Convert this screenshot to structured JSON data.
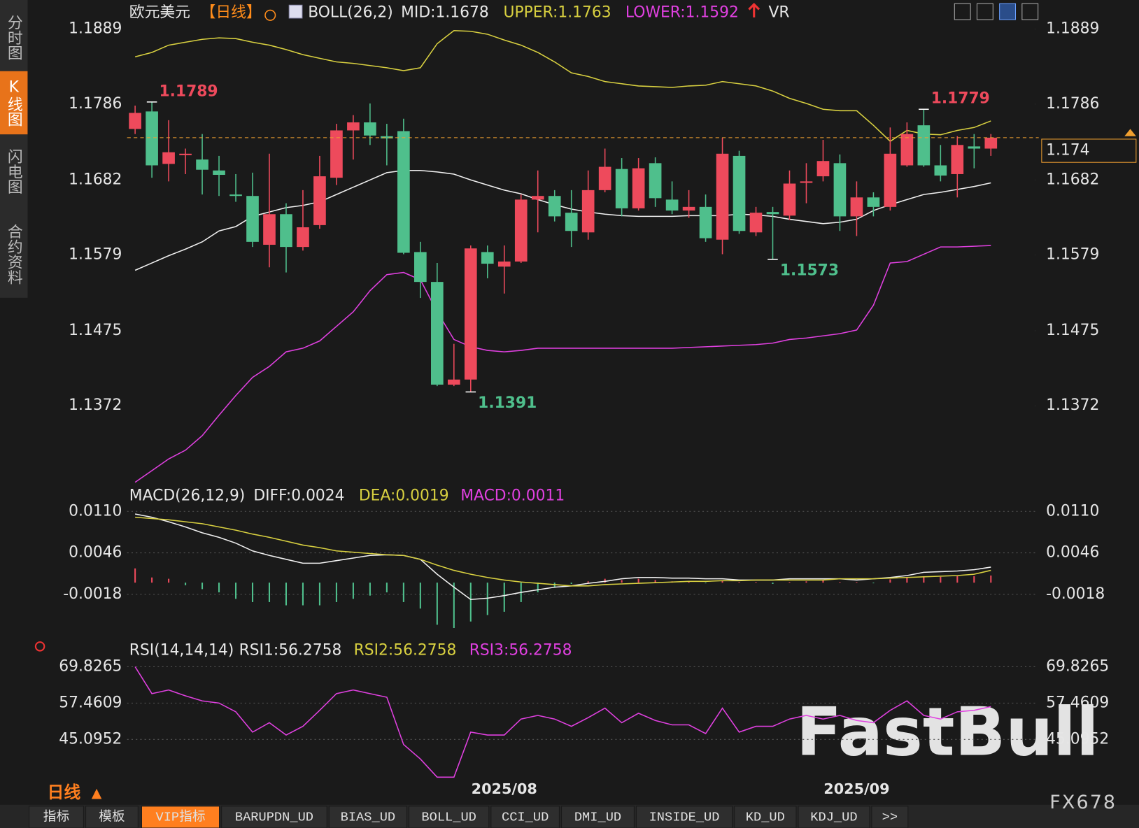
{
  "ui": {
    "side_tabs": [
      "分时图",
      "K线图",
      "闪电图",
      "合约资料"
    ],
    "side_active": 1,
    "bottom_tabs": [
      "指标",
      "模板",
      "VIP指标",
      "BARUPDN_UD",
      "BIAS_UD",
      "BOLL_UD",
      "CCI_UD",
      "DMI_UD",
      "INSIDE_UD",
      "KD_UD",
      "KDJ_UD",
      ">>"
    ],
    "bottom_active": 2,
    "period": "日线",
    "brand": "FX678",
    "watermark": "FastBull"
  },
  "chart_data": [
    {
      "type": "candlestick",
      "legend": [
        "欧元美元",
        "【日线】",
        "BOLL(26,2)",
        "MID:1.1678",
        "UPPER:1.1763",
        "LOWER:1.1592",
        "VR"
      ],
      "legend_colors": [
        "#e8e8e8",
        "#ff8c1a",
        "#e8e8e8",
        "#e8e8e8",
        "#d8d040",
        "#e040e0",
        "#e8e8e8"
      ],
      "categories": [
        null,
        null,
        null,
        null,
        null,
        null,
        null,
        null,
        null,
        null,
        null,
        null,
        null,
        null,
        null,
        null,
        null,
        null,
        null,
        null,
        null,
        null,
        "2025/08",
        null,
        null,
        null,
        null,
        null,
        null,
        null,
        null,
        null,
        null,
        null,
        null,
        null,
        null,
        null,
        null,
        null,
        null,
        null,
        null,
        "2025/09",
        null,
        null,
        null,
        null,
        null,
        null,
        null,
        null
      ],
      "up_color": "#ee4a5c",
      "down_color": "#4fbf8c",
      "last_price_color": "#f0a030",
      "candles": [
        [
          1.1752,
          1.1784,
          1.1745,
          1.1774
        ],
        [
          1.1776,
          1.1789,
          1.1685,
          1.1702
        ],
        [
          1.1704,
          1.1764,
          1.168,
          1.172
        ],
        [
          1.1716,
          1.1725,
          1.169,
          1.1718
        ],
        [
          1.171,
          1.1745,
          1.1662,
          1.1696
        ],
        [
          1.1695,
          1.1715,
          1.166,
          1.1689
        ],
        [
          1.1662,
          1.169,
          1.1652,
          1.166
        ],
        [
          1.166,
          1.1692,
          1.159,
          1.1597
        ],
        [
          1.1593,
          1.1718,
          1.1562,
          1.1635
        ],
        [
          1.1635,
          1.165,
          1.1555,
          1.159
        ],
        [
          1.159,
          1.1668,
          1.1585,
          1.1617
        ],
        [
          1.162,
          1.1715,
          1.1615,
          1.1687
        ],
        [
          1.1685,
          1.1759,
          1.1675,
          1.175
        ],
        [
          1.175,
          1.1771,
          1.171,
          1.1761
        ],
        [
          1.1761,
          1.1787,
          1.173,
          1.1743
        ],
        [
          1.1742,
          1.1759,
          1.1702,
          1.1739
        ],
        [
          1.1749,
          1.1766,
          1.158,
          1.1582
        ],
        [
          1.1583,
          1.1597,
          1.152,
          1.1542
        ],
        [
          1.1542,
          1.1568,
          1.1399,
          1.1401
        ],
        [
          1.1401,
          1.1457,
          1.1399,
          1.1408
        ],
        [
          1.1408,
          1.1592,
          1.1391,
          1.1588
        ],
        [
          1.1583,
          1.1592,
          1.1547,
          1.1567
        ],
        [
          1.1563,
          1.1592,
          1.1526,
          1.157
        ],
        [
          1.157,
          1.1662,
          1.1568,
          1.1655
        ],
        [
          1.1655,
          1.1695,
          1.161,
          1.166
        ],
        [
          1.166,
          1.1668,
          1.1625,
          1.1632
        ],
        [
          1.1637,
          1.1668,
          1.159,
          1.1612
        ],
        [
          1.161,
          1.1695,
          1.16,
          1.1668
        ],
        [
          1.1668,
          1.1725,
          1.1665,
          1.17
        ],
        [
          1.1697,
          1.1712,
          1.1632,
          1.1643
        ],
        [
          1.1643,
          1.1712,
          1.164,
          1.1698
        ],
        [
          1.1705,
          1.1713,
          1.1645,
          1.1657
        ],
        [
          1.1655,
          1.168,
          1.1635,
          1.164
        ],
        [
          1.164,
          1.1668,
          1.163,
          1.1645
        ],
        [
          1.1645,
          1.1662,
          1.1597,
          1.1602
        ],
        [
          1.16,
          1.174,
          1.158,
          1.1718
        ],
        [
          1.1715,
          1.1722,
          1.1608,
          1.1612
        ],
        [
          1.161,
          1.1645,
          1.1605,
          1.1637
        ],
        [
          1.1638,
          1.1645,
          1.1573,
          1.1635
        ],
        [
          1.1633,
          1.1695,
          1.1627,
          1.1677
        ],
        [
          1.1678,
          1.1705,
          1.165,
          1.168
        ],
        [
          1.1687,
          1.1737,
          1.168,
          1.1708
        ],
        [
          1.1705,
          1.1717,
          1.1612,
          1.1632
        ],
        [
          1.1632,
          1.168,
          1.1605,
          1.1658
        ],
        [
          1.1658,
          1.1665,
          1.1632,
          1.1645
        ],
        [
          1.1645,
          1.1754,
          1.164,
          1.1718
        ],
        [
          1.1702,
          1.1761,
          1.17,
          1.1745
        ],
        [
          1.1757,
          1.1779,
          1.17,
          1.1702
        ],
        [
          1.1702,
          1.173,
          1.168,
          1.1688
        ],
        [
          1.169,
          1.1742,
          1.1658,
          1.173
        ],
        [
          1.1728,
          1.1745,
          1.1698,
          1.1725
        ],
        [
          1.1725,
          1.1745,
          1.1715,
          1.174
        ]
      ],
      "lines": [
        {
          "color": "#f0f0f0",
          "values": [
            1.1558,
            1.1568,
            1.1578,
            1.1587,
            1.1597,
            1.1612,
            1.1618,
            1.1632,
            1.1638,
            1.1644,
            1.1647,
            1.1652,
            1.1662,
            1.1672,
            1.1682,
            1.1692,
            1.1695,
            1.1695,
            1.1693,
            1.169,
            1.1682,
            1.1675,
            1.1668,
            1.1663,
            1.1655,
            1.1648,
            1.1642,
            1.1638,
            1.1635,
            1.1633,
            1.1632,
            1.1632,
            1.1632,
            1.1633,
            1.1633,
            1.1633,
            1.1635,
            1.1634,
            1.1632,
            1.1628,
            1.1625,
            1.1622,
            1.1624,
            1.1628,
            1.164,
            1.1648,
            1.1655,
            1.1662,
            1.1665,
            1.1669,
            1.1673,
            1.1678
          ]
        },
        {
          "color": "#d8d040",
          "values": [
            1.1851,
            1.1857,
            1.1867,
            1.1871,
            1.1875,
            1.1877,
            1.1876,
            1.1871,
            1.1867,
            1.1861,
            1.1854,
            1.1849,
            1.1844,
            1.1842,
            1.1839,
            1.1836,
            1.1832,
            1.1836,
            1.1869,
            1.1887,
            1.1886,
            1.1882,
            1.1874,
            1.1867,
            1.1857,
            1.1844,
            1.1829,
            1.1824,
            1.1817,
            1.1814,
            1.1811,
            1.181,
            1.1809,
            1.1811,
            1.1812,
            1.1817,
            1.1814,
            1.1811,
            1.1804,
            1.1794,
            1.1787,
            1.1779,
            1.1777,
            1.1777,
            1.1757,
            1.1735,
            1.175,
            1.1745,
            1.1744,
            1.175,
            1.1754,
            1.1763
          ]
        },
        {
          "color": "#e040e0",
          "values": [
            1.1267,
            1.1283,
            1.1299,
            1.1311,
            1.1331,
            1.1359,
            1.1386,
            1.1411,
            1.1426,
            1.1446,
            1.1451,
            1.1461,
            1.1481,
            1.1501,
            1.153,
            1.1552,
            1.1555,
            1.1545,
            1.1501,
            1.1463,
            1.1453,
            1.1448,
            1.1446,
            1.1448,
            1.1451,
            1.1451,
            1.1451,
            1.1451,
            1.1451,
            1.1451,
            1.1451,
            1.1451,
            1.1451,
            1.1452,
            1.1453,
            1.1454,
            1.1455,
            1.1456,
            1.1458,
            1.1463,
            1.1465,
            1.1468,
            1.1471,
            1.1476,
            1.151,
            1.1568,
            1.157,
            1.158,
            1.159,
            1.159,
            1.1591,
            1.1592
          ]
        }
      ],
      "ylim": [
        1.1266,
        1.1924
      ],
      "yticks": [
        1.1889,
        1.1786,
        1.1682,
        1.1579,
        1.1475,
        1.1372
      ],
      "grid": false
    },
    {
      "type": "macd",
      "legend": [
        "MACD(26,12,9)",
        "DIFF:0.0024",
        "DEA:0.0019",
        "MACD:0.0011"
      ],
      "legend_colors": [
        "#e8e8e8",
        "#e8e8e8",
        "#d8d040",
        "#e040e0"
      ],
      "up_color": "#ee4a5c",
      "down_color": "#4fbf8c",
      "lines": [
        {
          "color": "#f0f0f0",
          "values": [
            0.0106,
            0.0101,
            0.0094,
            0.0086,
            0.0077,
            0.007,
            0.0061,
            0.0049,
            0.0042,
            0.0036,
            0.003,
            0.003,
            0.0034,
            0.0038,
            0.0042,
            0.0043,
            0.0042,
            0.0036,
            0.0013,
            -0.0007,
            -0.0026,
            -0.0024,
            -0.002,
            -0.0015,
            -0.0011,
            -0.0007,
            -0.0005,
            -0.0001,
            0.0002,
            0.0006,
            0.0008,
            0.0008,
            0.0007,
            0.0007,
            0.0006,
            0.0006,
            0.0004,
            0.0004,
            0.0004,
            0.0006,
            0.0006,
            0.0006,
            0.0006,
            0.0004,
            0.0006,
            0.0008,
            0.0011,
            0.0016,
            0.0017,
            0.0018,
            0.002,
            0.0024
          ]
        },
        {
          "color": "#d8d040",
          "values": [
            0.0101,
            0.0099,
            0.0097,
            0.0094,
            0.0091,
            0.0086,
            0.0081,
            0.0075,
            0.007,
            0.0064,
            0.0058,
            0.0054,
            0.0049,
            0.0047,
            0.0045,
            0.0043,
            0.0042,
            0.0036,
            0.0027,
            0.0019,
            0.0013,
            0.0008,
            0.0004,
            0.0001,
            -0.0001,
            -0.0003,
            -0.0005,
            -0.0005,
            -0.0003,
            -0.0002,
            -0.0001,
            0,
            0.0001,
            0.0002,
            0.0002,
            0.0003,
            0.0003,
            0.0004,
            0.0004,
            0.0004,
            0.0004,
            0.0004,
            0.0006,
            0.0006,
            0.0006,
            0.0007,
            0.0008,
            0.0009,
            0.001,
            0.0011,
            0.0013,
            0.0019
          ]
        }
      ],
      "histogram": [
        0.0022,
        0.0008,
        0.0006,
        -0.0004,
        -0.001,
        -0.0015,
        -0.0025,
        -0.003,
        -0.003,
        -0.0035,
        -0.0035,
        -0.0035,
        -0.003,
        -0.0025,
        -0.002,
        -0.0015,
        -0.003,
        -0.004,
        -0.0065,
        -0.007,
        -0.006,
        -0.005,
        -0.0045,
        -0.003,
        -0.0015,
        -0.0008,
        -0.0002,
        0.0002,
        0.0006,
        0.0004,
        0.0006,
        0.0004,
        0.0002,
        0.0002,
        -0.0001,
        0.0003,
        0.0001,
        0.0001,
        -0.0002,
        0.0001,
        0.0002,
        0.0004,
        0.0001,
        0.0001,
        -0.0001,
        0.0005,
        0.0008,
        0.001,
        0.0009,
        0.001,
        0.001,
        0.0011
      ],
      "ylim": [
        -0.0085,
        0.0146
      ],
      "yticks": [
        {
          "value": 0.011,
          "label": "0.0110"
        },
        0.0046,
        -0.0018
      ],
      "grid": true
    },
    {
      "type": "line",
      "legend": [
        "RSI(14,14,14)",
        "RSI1:56.2758",
        "RSI2:56.2758",
        "RSI3:56.2758"
      ],
      "legend_colors": [
        "#e8e8e8",
        "#e8e8e8",
        "#d8d040",
        "#e040e0"
      ],
      "lines": [
        {
          "color": "#e040e0",
          "values": [
            69.83,
            60.68,
            61.91,
            59.93,
            58.2,
            57.46,
            54.49,
            47.57,
            50.78,
            46.58,
            49.55,
            54.99,
            60.68,
            61.91,
            60.68,
            59.44,
            43.36,
            38.42,
            32.24,
            32.24,
            47.57,
            46.58,
            46.58,
            52.02,
            53.26,
            52.02,
            49.55,
            52.51,
            55.73,
            50.78,
            54.0,
            51.53,
            50.04,
            50.04,
            47.08,
            55.73,
            47.57,
            49.55,
            49.55,
            52.02,
            53.26,
            52.02,
            53.26,
            51.53,
            50.78,
            54.99,
            58.2,
            53.26,
            52.02,
            54.49,
            54.99,
            56.2758
          ]
        }
      ],
      "ylim": [
        31.0,
        76.75
      ],
      "yticks": [
        69.8265,
        57.4609,
        45.0952
      ],
      "grid": true
    }
  ]
}
